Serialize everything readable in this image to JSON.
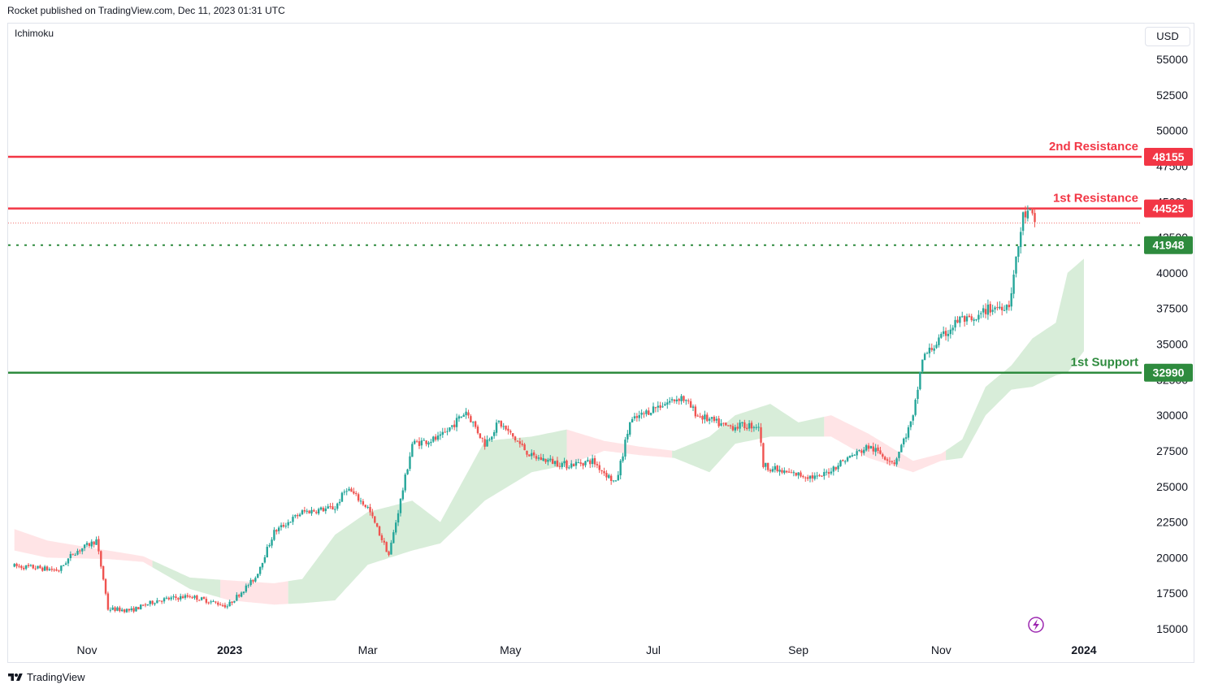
{
  "header": {
    "published_text": "Rocket published on TradingView.com, Dec 11, 2023 01:31 UTC"
  },
  "indicator_label": "Ichimoku",
  "currency_button": "USD",
  "footer": {
    "brand": "TradingView"
  },
  "icons": {
    "footer_logo": "tradingview-logo-icon",
    "event_marker": "lightning-icon"
  },
  "colors": {
    "up": "#26a69a",
    "down": "#ef5350",
    "resistance": "#f23645",
    "support": "#2e8b3e",
    "cloud_bull": "#c8e6c9",
    "cloud_bear": "#ffcdd2",
    "event": "#9c27b0"
  },
  "chart_data": {
    "type": "candlestick",
    "title": "",
    "xlabel": "",
    "ylabel": "",
    "ylim": [
      14000,
      56000
    ],
    "y_ticks": [
      15000,
      17500,
      20000,
      22500,
      25000,
      27500,
      30000,
      32500,
      35000,
      37500,
      40000,
      42500,
      45000,
      47500,
      50000,
      52500,
      55000
    ],
    "x_ticks": [
      {
        "label": "Nov",
        "date": "2022-11-01",
        "bold": false
      },
      {
        "label": "2023",
        "date": "2023-01-01",
        "bold": true
      },
      {
        "label": "Mar",
        "date": "2023-03-01",
        "bold": false
      },
      {
        "label": "May",
        "date": "2023-05-01",
        "bold": false
      },
      {
        "label": "Jul",
        "date": "2023-07-01",
        "bold": false
      },
      {
        "label": "Sep",
        "date": "2023-09-01",
        "bold": false
      },
      {
        "label": "Nov",
        "date": "2023-11-01",
        "bold": false
      },
      {
        "label": "2024",
        "date": "2024-01-01",
        "bold": true
      }
    ],
    "x_range": [
      "2022-10-01",
      "2024-01-26"
    ],
    "levels": [
      {
        "label": "2nd Resistance",
        "value": 48155,
        "style": "solid",
        "color": "#f23645"
      },
      {
        "label": "1st Resistance",
        "value": 44525,
        "style": "solid",
        "color": "#f23645"
      },
      {
        "label": "",
        "value": 41948,
        "style": "dotted",
        "color": "#2e8b3e"
      },
      {
        "label": "1st Support",
        "value": 32990,
        "style": "solid",
        "color": "#2e8b3e"
      }
    ],
    "last_price": 43500,
    "price_path": [
      [
        "2022-10-01",
        19400
      ],
      [
        "2022-10-10",
        19300
      ],
      [
        "2022-10-20",
        19100
      ],
      [
        "2022-10-26",
        20300
      ],
      [
        "2022-11-05",
        21200
      ],
      [
        "2022-11-08",
        18500
      ],
      [
        "2022-11-10",
        16400
      ],
      [
        "2022-11-20",
        16300
      ],
      [
        "2022-12-01",
        17000
      ],
      [
        "2022-12-15",
        17300
      ],
      [
        "2022-12-31",
        16600
      ],
      [
        "2023-01-12",
        18600
      ],
      [
        "2023-01-20",
        21800
      ],
      [
        "2023-02-01",
        23200
      ],
      [
        "2023-02-15",
        23500
      ],
      [
        "2023-02-20",
        24900
      ],
      [
        "2023-03-01",
        23500
      ],
      [
        "2023-03-10",
        20200
      ],
      [
        "2023-03-16",
        24800
      ],
      [
        "2023-03-20",
        28000
      ],
      [
        "2023-04-01",
        28400
      ],
      [
        "2023-04-12",
        30300
      ],
      [
        "2023-04-20",
        28000
      ],
      [
        "2023-04-26",
        29500
      ],
      [
        "2023-05-10",
        27100
      ],
      [
        "2023-05-25",
        26500
      ],
      [
        "2023-06-05",
        26800
      ],
      [
        "2023-06-15",
        25200
      ],
      [
        "2023-06-21",
        29500
      ],
      [
        "2023-07-01",
        30500
      ],
      [
        "2023-07-13",
        31300
      ],
      [
        "2023-07-20",
        30000
      ],
      [
        "2023-08-01",
        29200
      ],
      [
        "2023-08-15",
        29300
      ],
      [
        "2023-08-17",
        26500
      ],
      [
        "2023-08-25",
        26000
      ],
      [
        "2023-09-10",
        25600
      ],
      [
        "2023-09-20",
        26800
      ],
      [
        "2023-10-01",
        27800
      ],
      [
        "2023-10-12",
        26700
      ],
      [
        "2023-10-20",
        29800
      ],
      [
        "2023-10-24",
        34000
      ],
      [
        "2023-11-01",
        35400
      ],
      [
        "2023-11-09",
        36800
      ],
      [
        "2023-11-15",
        36500
      ],
      [
        "2023-11-20",
        37400
      ],
      [
        "2023-11-30",
        37800
      ],
      [
        "2023-12-04",
        41900
      ],
      [
        "2023-12-06",
        44000
      ],
      [
        "2023-12-09",
        44200
      ],
      [
        "2023-12-11",
        43500
      ]
    ],
    "cloud_upper": [
      [
        "2022-10-01",
        22000
      ],
      [
        "2022-10-15",
        21200
      ],
      [
        "2022-11-10",
        20500
      ],
      [
        "2022-11-25",
        20100
      ],
      [
        "2022-12-15",
        18600
      ],
      [
        "2023-01-01",
        18400
      ],
      [
        "2023-01-20",
        18200
      ],
      [
        "2023-02-01",
        18500
      ],
      [
        "2023-02-15",
        21600
      ],
      [
        "2023-03-01",
        23200
      ],
      [
        "2023-03-20",
        24000
      ],
      [
        "2023-04-01",
        22500
      ],
      [
        "2023-04-20",
        28200
      ],
      [
        "2023-05-10",
        28500
      ],
      [
        "2023-05-25",
        29000
      ],
      [
        "2023-06-10",
        28200
      ],
      [
        "2023-06-25",
        27800
      ],
      [
        "2023-07-10",
        27500
      ],
      [
        "2023-07-25",
        28500
      ],
      [
        "2023-08-05",
        30000
      ],
      [
        "2023-08-20",
        30800
      ],
      [
        "2023-09-01",
        29500
      ],
      [
        "2023-09-15",
        30000
      ],
      [
        "2023-10-01",
        28700
      ],
      [
        "2023-10-20",
        26800
      ],
      [
        "2023-11-01",
        27300
      ],
      [
        "2023-11-10",
        28300
      ],
      [
        "2023-11-20",
        32000
      ],
      [
        "2023-12-01",
        33500
      ],
      [
        "2023-12-10",
        35400
      ],
      [
        "2023-12-20",
        36500
      ],
      [
        "2023-12-25",
        40000
      ],
      [
        "2024-01-01",
        41000
      ]
    ],
    "cloud_lower": [
      [
        "2022-10-01",
        20500
      ],
      [
        "2022-10-15",
        20000
      ],
      [
        "2022-11-10",
        19900
      ],
      [
        "2022-11-25",
        19700
      ],
      [
        "2022-12-15",
        17800
      ],
      [
        "2023-01-01",
        17000
      ],
      [
        "2023-01-20",
        16700
      ],
      [
        "2023-02-01",
        16800
      ],
      [
        "2023-02-15",
        17000
      ],
      [
        "2023-03-01",
        19500
      ],
      [
        "2023-03-20",
        20500
      ],
      [
        "2023-04-01",
        21000
      ],
      [
        "2023-04-20",
        24000
      ],
      [
        "2023-05-10",
        26000
      ],
      [
        "2023-05-25",
        26500
      ],
      [
        "2023-06-10",
        27500
      ],
      [
        "2023-06-25",
        27200
      ],
      [
        "2023-07-10",
        27000
      ],
      [
        "2023-07-25",
        26000
      ],
      [
        "2023-08-05",
        28000
      ],
      [
        "2023-08-20",
        28500
      ],
      [
        "2023-09-01",
        28500
      ],
      [
        "2023-09-15",
        28500
      ],
      [
        "2023-10-01",
        27000
      ],
      [
        "2023-10-20",
        26000
      ],
      [
        "2023-11-01",
        26800
      ],
      [
        "2023-11-10",
        27000
      ],
      [
        "2023-11-20",
        30000
      ],
      [
        "2023-12-01",
        31800
      ],
      [
        "2023-12-10",
        32000
      ],
      [
        "2023-12-20",
        32800
      ],
      [
        "2023-12-25",
        33000
      ],
      [
        "2024-01-01",
        34500
      ]
    ],
    "cloud_bear_ranges": [
      [
        "2022-10-01",
        "2022-11-28"
      ],
      [
        "2022-12-28",
        "2023-01-25"
      ],
      [
        "2023-05-25",
        "2023-07-08"
      ],
      [
        "2023-09-12",
        "2023-11-02"
      ]
    ]
  }
}
